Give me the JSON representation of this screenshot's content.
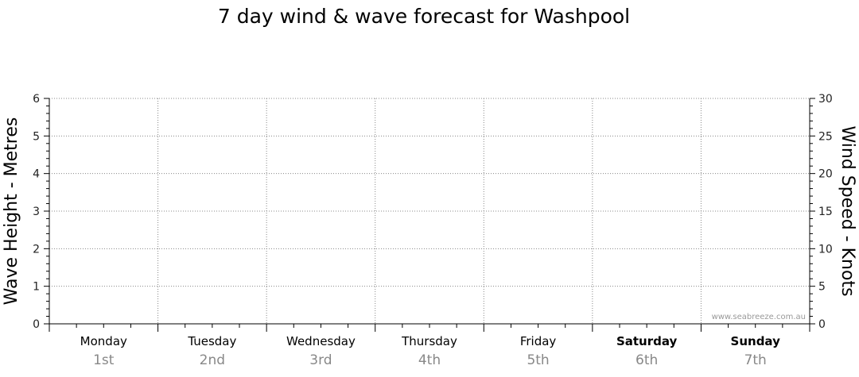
{
  "chart_data": {
    "type": "line",
    "title": "7 day wind & wave forecast for Washpool",
    "ylabel_left": "Wave Height - Metres",
    "ylabel_right": "Wind Speed - Knots",
    "ylim_left": [
      0,
      6
    ],
    "ylim_right": [
      0,
      30
    ],
    "yticks_left": [
      "0",
      "1",
      "2",
      "3",
      "4",
      "5",
      "6"
    ],
    "yticks_right": [
      "0",
      "5",
      "10",
      "15",
      "20",
      "25",
      "30"
    ],
    "grid": true,
    "days": [
      {
        "day": "Monday",
        "date": "1st",
        "bold": false
      },
      {
        "day": "Tuesday",
        "date": "2nd",
        "bold": false
      },
      {
        "day": "Wednesday",
        "date": "3rd",
        "bold": false
      },
      {
        "day": "Thursday",
        "date": "4th",
        "bold": false
      },
      {
        "day": "Friday",
        "date": "5th",
        "bold": false
      },
      {
        "day": "Saturday",
        "date": "6th",
        "bold": true
      },
      {
        "day": "Sunday",
        "date": "7th",
        "bold": true
      }
    ],
    "series": [],
    "watermark": "www.seabreeze.com.au"
  }
}
